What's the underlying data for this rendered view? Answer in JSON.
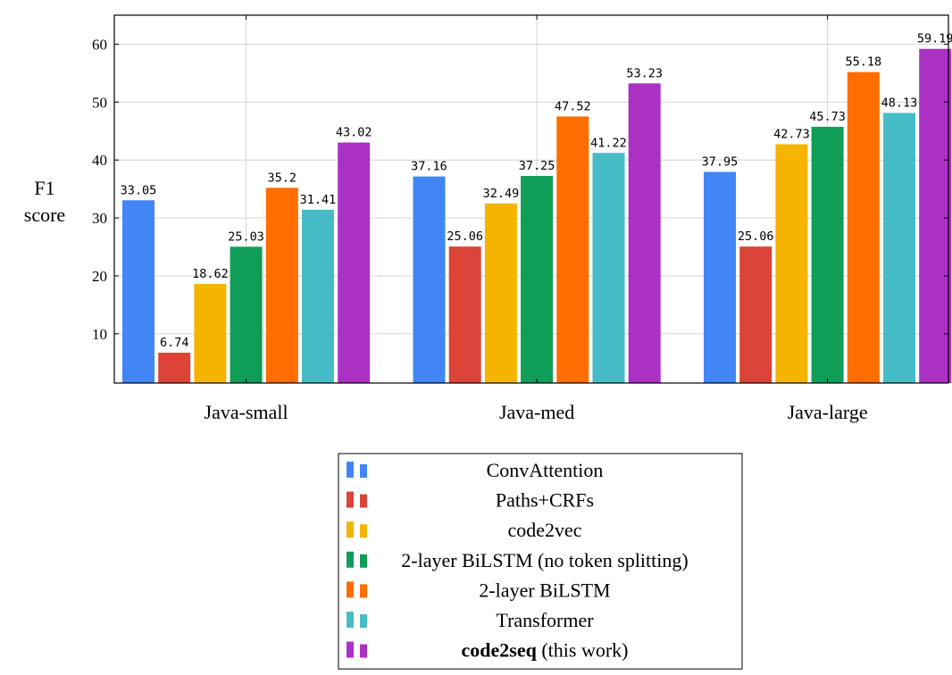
{
  "chart_data": {
    "type": "bar",
    "categories": [
      "Java-small",
      "Java-med",
      "Java-large"
    ],
    "ylabel": [
      "F1",
      "score"
    ],
    "xlabel": "",
    "ylim": [
      1.5,
      65
    ],
    "yticks": [
      10,
      20,
      30,
      40,
      50,
      60
    ],
    "grid": true,
    "legend_position": "bottom",
    "series": [
      {
        "name": "ConvAttention",
        "color": "#4285f4",
        "values": [
          33.05,
          37.16,
          37.95
        ]
      },
      {
        "name": "Paths+CRFs",
        "color": "#db4437",
        "values": [
          6.74,
          25.06,
          25.06
        ]
      },
      {
        "name": "code2vec",
        "color": "#f4b400",
        "values": [
          18.62,
          32.49,
          42.73
        ]
      },
      {
        "name": "2-layer BiLSTM (no token splitting)",
        "color": "#0f9d58",
        "values": [
          25.03,
          37.25,
          45.73
        ]
      },
      {
        "name": "2-layer BiLSTM",
        "color": "#ff6d00",
        "values": [
          35.2,
          47.52,
          55.18
        ]
      },
      {
        "name": "Transformer",
        "color": "#46bdc6",
        "values": [
          31.41,
          41.22,
          48.13
        ]
      },
      {
        "name": "code2seq",
        "name_suffix": " (this work)",
        "bold_name": true,
        "color": "#ab30c4",
        "values": [
          43.02,
          53.23,
          59.19
        ]
      }
    ]
  }
}
